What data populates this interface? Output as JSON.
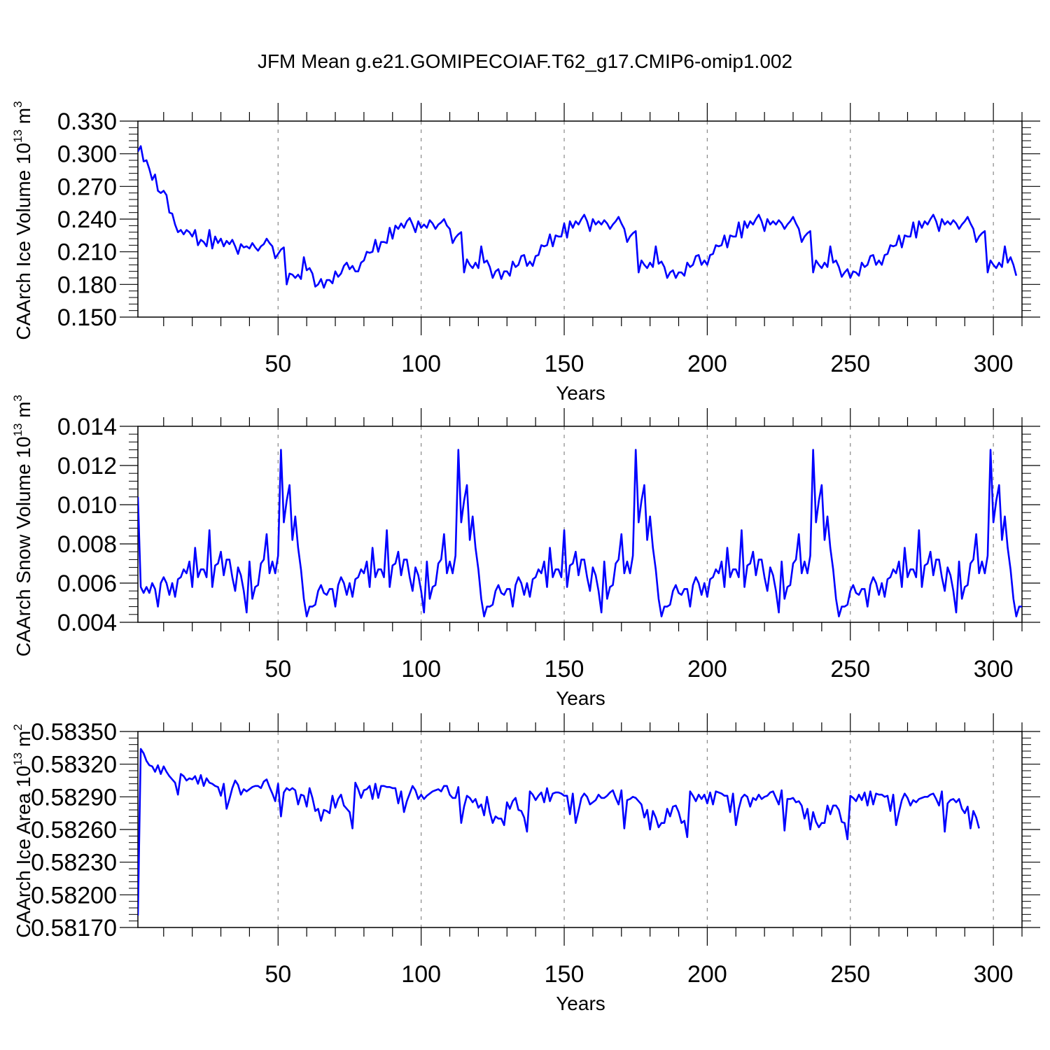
{
  "title": "JFM Mean g.e21.GOMIPECOIAF.T62_g17.CMIP6-omip1.002",
  "chart_data": [
    {
      "type": "line",
      "name": "ice-volume",
      "ylabel_main": "CAArch Ice Volume 10",
      "ylabel_exp": "13",
      "ylabel_unit": " m",
      "ylabel_unit_exp": "3",
      "xlabel": "Years",
      "xlim": [
        1,
        310
      ],
      "ylim": [
        0.15,
        0.33
      ],
      "yticks": [
        0.15,
        0.18,
        0.21,
        0.24,
        0.27,
        0.3,
        0.33
      ],
      "ytick_labels": [
        "0.150",
        "0.180",
        "0.210",
        "0.240",
        "0.270",
        "0.300",
        "0.330"
      ],
      "xticks": [
        50,
        100,
        150,
        200,
        250,
        300
      ],
      "xtick_labels": [
        "50",
        "100",
        "150",
        "200",
        "250",
        "300"
      ],
      "color": "#0000ff",
      "x_start": 1,
      "values": [
        0.302,
        0.307,
        0.293,
        0.294,
        0.286,
        0.276,
        0.281,
        0.266,
        0.264,
        0.266,
        0.262,
        0.246,
        0.245,
        0.235,
        0.228,
        0.23,
        0.226,
        0.23,
        0.228,
        0.224,
        0.23,
        0.216,
        0.221,
        0.219,
        0.215,
        0.23,
        0.213,
        0.224,
        0.218,
        0.222,
        0.215,
        0.22,
        0.217,
        0.221,
        0.215,
        0.208,
        0.217,
        0.214,
        0.215,
        0.213,
        0.218,
        0.214,
        0.211,
        0.215,
        0.217,
        0.222,
        0.218,
        0.215,
        0.204,
        0.208,
        0.212,
        0.214,
        0.18,
        0.19,
        0.189,
        0.186,
        0.189,
        0.185,
        0.205,
        0.193,
        0.195,
        0.19,
        0.178,
        0.18,
        0.185,
        0.177,
        0.184,
        0.184,
        0.181,
        0.192,
        0.187,
        0.19,
        0.197,
        0.2,
        0.194,
        0.197,
        0.192,
        0.192,
        0.2,
        0.202,
        0.21,
        0.209,
        0.21,
        0.221,
        0.21,
        0.219,
        0.219,
        0.218,
        0.232,
        0.222,
        0.234,
        0.231,
        0.236,
        0.232,
        0.238,
        0.241,
        0.235,
        0.228,
        0.238,
        0.232,
        0.235,
        0.232,
        0.239,
        0.236,
        0.231,
        0.235,
        0.237,
        0.24,
        0.234,
        0.231,
        0.218,
        0.223,
        0.226,
        0.228,
        0.191,
        0.203,
        0.198,
        0.195,
        0.2,
        0.195,
        0.215,
        0.2,
        0.202,
        0.196,
        0.186,
        0.192,
        0.194,
        0.185,
        0.192,
        0.192,
        0.188,
        0.201,
        0.196,
        0.198,
        0.206,
        0.207,
        0.197,
        0.201,
        0.197,
        0.206,
        0.207,
        0.216,
        0.215,
        0.216,
        0.226,
        0.215,
        0.225,
        0.224,
        0.224,
        0.236,
        0.223,
        0.238,
        0.232,
        0.238,
        0.235,
        0.24,
        0.244,
        0.238,
        0.229,
        0.24,
        0.235,
        0.238,
        0.235,
        0.239,
        0.236,
        0.231,
        0.235,
        0.238,
        0.242,
        0.236,
        0.231,
        0.219,
        0.224,
        0.227,
        0.229,
        0.191,
        0.202,
        0.198,
        0.195,
        0.2,
        0.196,
        0.215,
        0.199,
        0.201,
        0.196,
        0.186,
        0.191,
        0.193,
        0.186,
        0.191,
        0.191,
        0.188,
        0.2,
        0.196,
        0.198,
        0.206,
        0.207,
        0.198,
        0.202,
        0.198,
        0.207,
        0.208,
        0.216,
        0.215,
        0.216,
        0.225,
        0.214,
        0.225,
        0.224,
        0.224,
        0.237,
        0.223,
        0.238,
        0.232,
        0.238,
        0.235,
        0.24,
        0.244,
        0.238,
        0.229,
        0.24,
        0.235,
        0.238,
        0.235,
        0.239,
        0.236,
        0.231,
        0.235,
        0.238,
        0.242,
        0.236,
        0.231,
        0.219,
        0.224,
        0.227,
        0.229,
        0.191,
        0.202,
        0.198,
        0.195,
        0.2,
        0.196,
        0.215,
        0.2,
        0.202,
        0.196,
        0.187,
        0.191,
        0.194,
        0.186,
        0.192,
        0.191,
        0.188,
        0.2,
        0.196,
        0.198,
        0.206,
        0.207,
        0.198,
        0.202,
        0.198,
        0.207,
        0.208,
        0.216,
        0.215,
        0.216,
        0.225,
        0.214,
        0.225,
        0.224,
        0.224,
        0.237,
        0.223,
        0.238,
        0.232,
        0.238,
        0.235,
        0.24,
        0.244,
        0.238,
        0.229,
        0.24,
        0.235,
        0.238,
        0.235,
        0.239,
        0.236,
        0.231,
        0.235,
        0.238,
        0.242,
        0.236,
        0.231,
        0.219,
        0.224,
        0.227,
        0.229,
        0.191,
        0.202,
        0.198,
        0.195,
        0.2,
        0.196,
        0.215,
        0.2,
        0.205,
        0.198,
        0.188
      ]
    },
    {
      "type": "line",
      "name": "snow-volume",
      "ylabel_main": "CAArch Snow Volume 10",
      "ylabel_exp": "13",
      "ylabel_unit": " m",
      "ylabel_unit_exp": "3",
      "xlabel": "Years",
      "xlim": [
        1,
        310
      ],
      "ylim": [
        0.004,
        0.014
      ],
      "yticks": [
        0.004,
        0.006,
        0.008,
        0.01,
        0.012,
        0.014
      ],
      "ytick_labels": [
        "0.004",
        "0.006",
        "0.008",
        "0.010",
        "0.012",
        "0.014"
      ],
      "xticks": [
        50,
        100,
        150,
        200,
        250,
        300
      ],
      "xtick_labels": [
        "50",
        "100",
        "150",
        "200",
        "250",
        "300"
      ],
      "color": "#0000ff",
      "x_start": 1,
      "values": [
        0.0104,
        0.0058,
        0.0055,
        0.0058,
        0.0055,
        0.006,
        0.0057,
        0.0048,
        0.006,
        0.0063,
        0.006,
        0.0054,
        0.006,
        0.0053,
        0.0062,
        0.0063,
        0.0067,
        0.0065,
        0.0071,
        0.0058,
        0.0078,
        0.0063,
        0.0067,
        0.0067,
        0.0063,
        0.0087,
        0.0058,
        0.0069,
        0.007,
        0.0076,
        0.0064,
        0.0072,
        0.0072,
        0.0063,
        0.0056,
        0.0068,
        0.0064,
        0.0056,
        0.0045,
        0.0071,
        0.0052,
        0.0058,
        0.0059,
        0.007,
        0.0072,
        0.0085,
        0.0065,
        0.0071,
        0.0065,
        0.0074,
        0.0128,
        0.0091,
        0.0102,
        0.011,
        0.0082,
        0.0094,
        0.0078,
        0.0067,
        0.0052,
        0.0043,
        0.0048,
        0.0048,
        0.0049,
        0.0056,
        0.0059,
        0.0055,
        0.0054,
        0.0057,
        0.0057,
        0.0048,
        0.0059,
        0.0063,
        0.006,
        0.0054,
        0.006,
        0.0053,
        0.0062,
        0.0063,
        0.0067,
        0.0065,
        0.0071,
        0.0058,
        0.0078,
        0.0063,
        0.0067,
        0.0067,
        0.0063,
        0.0087,
        0.0058,
        0.0069,
        0.007,
        0.0076,
        0.0064,
        0.0072,
        0.0072,
        0.0063,
        0.0056,
        0.0068,
        0.0064,
        0.0056,
        0.0045,
        0.0071,
        0.0052,
        0.0058,
        0.0059,
        0.007,
        0.0072,
        0.0085,
        0.0065,
        0.0071,
        0.0065,
        0.0074,
        0.0128,
        0.0091,
        0.0102,
        0.011,
        0.0082,
        0.0094,
        0.0078,
        0.0067,
        0.0052,
        0.0043,
        0.0048,
        0.0048,
        0.0049,
        0.0056,
        0.0059,
        0.0055,
        0.0054,
        0.0057,
        0.0057,
        0.0048,
        0.0059,
        0.0063,
        0.006,
        0.0054,
        0.006,
        0.0053,
        0.0062,
        0.0063,
        0.0067,
        0.0065,
        0.0071,
        0.0058,
        0.0078,
        0.0063,
        0.0067,
        0.0067,
        0.0063,
        0.0087,
        0.0058,
        0.0069,
        0.007,
        0.0076,
        0.0064,
        0.0072,
        0.0072,
        0.0063,
        0.0056,
        0.0068,
        0.0064,
        0.0056,
        0.0045,
        0.0071,
        0.0052,
        0.0058,
        0.0059,
        0.007,
        0.0072,
        0.0085,
        0.0065,
        0.0071,
        0.0065,
        0.0074,
        0.0128,
        0.0091,
        0.0102,
        0.011,
        0.0082,
        0.0094,
        0.0078,
        0.0067,
        0.0052,
        0.0043,
        0.0048,
        0.0048,
        0.0049,
        0.0056,
        0.0059,
        0.0055,
        0.0054,
        0.0057,
        0.0057,
        0.0048,
        0.0059,
        0.0063,
        0.006,
        0.0054,
        0.006,
        0.0053,
        0.0062,
        0.0063,
        0.0067,
        0.0065,
        0.0071,
        0.0058,
        0.0078,
        0.0063,
        0.0067,
        0.0067,
        0.0063,
        0.0087,
        0.0058,
        0.0069,
        0.007,
        0.0076,
        0.0064,
        0.0072,
        0.0072,
        0.0063,
        0.0056,
        0.0068,
        0.0064,
        0.0056,
        0.0045,
        0.0071,
        0.0052,
        0.0058,
        0.0059,
        0.007,
        0.0072,
        0.0085,
        0.0065,
        0.0071,
        0.0065,
        0.0074,
        0.0128,
        0.0091,
        0.0102,
        0.011,
        0.0082,
        0.0094,
        0.0078,
        0.0067,
        0.0052,
        0.0043,
        0.0048,
        0.0048,
        0.0049,
        0.0056,
        0.0059,
        0.0055,
        0.0054,
        0.0057,
        0.0057,
        0.0048,
        0.0059,
        0.0063,
        0.006,
        0.0054,
        0.006,
        0.0053,
        0.0062,
        0.0063,
        0.0067,
        0.0065,
        0.0071,
        0.0058,
        0.0078,
        0.0063,
        0.0067,
        0.0067,
        0.0063,
        0.0087,
        0.0058,
        0.0069,
        0.007,
        0.0076,
        0.0064,
        0.0072,
        0.0072,
        0.0063,
        0.0056,
        0.0068,
        0.0064,
        0.0056,
        0.0045,
        0.0071,
        0.0052,
        0.0058,
        0.0059,
        0.007,
        0.0072,
        0.0085,
        0.0065,
        0.0071,
        0.0065,
        0.0074,
        0.0128,
        0.0091,
        0.0102,
        0.011,
        0.0082,
        0.0094,
        0.0078,
        0.0067,
        0.0052,
        0.0043,
        0.0048,
        0.0048
      ]
    },
    {
      "type": "line",
      "name": "ice-area",
      "ylabel_main": "CAArch Ice Area 10",
      "ylabel_exp": "13",
      "ylabel_unit": " m",
      "ylabel_unit_exp": "2",
      "xlabel": "Years",
      "xlim": [
        1,
        310
      ],
      "ylim": [
        0.5817,
        0.5835
      ],
      "yticks": [
        0.5817,
        0.582,
        0.5823,
        0.5826,
        0.5829,
        0.5832,
        0.5835
      ],
      "ytick_labels": [
        "0.58170",
        "0.58200",
        "0.58230",
        "0.58260",
        "0.58290",
        "0.58320",
        "0.58350"
      ],
      "xticks": [
        50,
        100,
        150,
        200,
        250,
        300
      ],
      "xtick_labels": [
        "50",
        "100",
        "150",
        "200",
        "250",
        "300"
      ],
      "color": "#0000ff",
      "x_start": 1,
      "values": [
        0.58181,
        0.58334,
        0.5833,
        0.58323,
        0.58319,
        0.58318,
        0.58313,
        0.58319,
        0.58311,
        0.58318,
        0.58313,
        0.58309,
        0.58306,
        0.58303,
        0.58292,
        0.58311,
        0.58309,
        0.58305,
        0.58307,
        0.58306,
        0.58309,
        0.58302,
        0.5831,
        0.583,
        0.58307,
        0.58303,
        0.58302,
        0.583,
        0.58299,
        0.58291,
        0.58302,
        0.58279,
        0.58288,
        0.58298,
        0.58305,
        0.58301,
        0.58292,
        0.58297,
        0.58295,
        0.58297,
        0.58299,
        0.583,
        0.583,
        0.58298,
        0.58304,
        0.58306,
        0.58299,
        0.58293,
        0.58286,
        0.58302,
        0.58272,
        0.58294,
        0.58298,
        0.58296,
        0.58298,
        0.58296,
        0.58283,
        0.58292,
        0.58291,
        0.58281,
        0.58298,
        0.58289,
        0.58277,
        0.58279,
        0.58268,
        0.58278,
        0.58277,
        0.58275,
        0.58291,
        0.5828,
        0.58288,
        0.58292,
        0.58282,
        0.58279,
        0.58276,
        0.58261,
        0.58303,
        0.58297,
        0.58289,
        0.58296,
        0.58297,
        0.583,
        0.58288,
        0.58302,
        0.58289,
        0.583,
        0.583,
        0.58299,
        0.58299,
        0.58298,
        0.58298,
        0.58284,
        0.58295,
        0.58276,
        0.58286,
        0.58293,
        0.583,
        0.58296,
        0.58288,
        0.58292,
        0.58288,
        0.58291,
        0.58293,
        0.58295,
        0.58296,
        0.58297,
        0.58295,
        0.583,
        0.583,
        0.58292,
        0.58289,
        0.58289,
        0.58299,
        0.58266,
        0.58281,
        0.58291,
        0.58289,
        0.58285,
        0.58288,
        0.5828,
        0.58283,
        0.58273,
        0.5829,
        0.58276,
        0.58266,
        0.58272,
        0.5827,
        0.5827,
        0.58264,
        0.58285,
        0.58279,
        0.58286,
        0.58289,
        0.58278,
        0.58277,
        0.58271,
        0.58258,
        0.58295,
        0.58292,
        0.58287,
        0.58291,
        0.58294,
        0.58285,
        0.58298,
        0.58286,
        0.58293,
        0.58294,
        0.58294,
        0.58293,
        0.58291,
        0.58291,
        0.58274,
        0.58293,
        0.58266,
        0.58277,
        0.58289,
        0.58293,
        0.5829,
        0.58283,
        0.58285,
        0.58287,
        0.58292,
        0.58289,
        0.58289,
        0.58291,
        0.58294,
        0.58296,
        0.58289,
        0.58283,
        0.58296,
        0.58261,
        0.58287,
        0.58288,
        0.5829,
        0.58289,
        0.58286,
        0.58283,
        0.58271,
        0.58278,
        0.5826,
        0.58277,
        0.58271,
        0.58262,
        0.58266,
        0.58266,
        0.58279,
        0.58272,
        0.58281,
        0.58282,
        0.58276,
        0.58266,
        0.58268,
        0.58253,
        0.58295,
        0.58291,
        0.58286,
        0.58292,
        0.58288,
        0.58292,
        0.58284,
        0.58294,
        0.58283,
        0.58295,
        0.58294,
        0.58293,
        0.58291,
        0.58291,
        0.58276,
        0.58293,
        0.58264,
        0.58279,
        0.58289,
        0.58292,
        0.5829,
        0.58281,
        0.58289,
        0.58287,
        0.58292,
        0.58288,
        0.5829,
        0.58291,
        0.58294,
        0.58295,
        0.58289,
        0.58283,
        0.58296,
        0.58259,
        0.58288,
        0.58288,
        0.58289,
        0.58285,
        0.58286,
        0.58282,
        0.5827,
        0.58279,
        0.5826,
        0.58276,
        0.58267,
        0.58262,
        0.58266,
        0.58266,
        0.58282,
        0.58274,
        0.58282,
        0.58282,
        0.58278,
        0.58267,
        0.58266,
        0.58251,
        0.58291,
        0.58289,
        0.58286,
        0.58292,
        0.58287,
        0.58294,
        0.58282,
        0.58295,
        0.58283,
        0.58293,
        0.58292,
        0.58292,
        0.5829,
        0.58291,
        0.58277,
        0.58292,
        0.58264,
        0.58276,
        0.58287,
        0.58293,
        0.58289,
        0.58282,
        0.58287,
        0.58285,
        0.58288,
        0.58289,
        0.5829,
        0.5829,
        0.58292,
        0.58293,
        0.58288,
        0.58282,
        0.58295,
        0.58258,
        0.58284,
        0.58287,
        0.58288,
        0.58285,
        0.58288,
        0.58279,
        0.58275,
        0.58281,
        0.58261,
        0.58277,
        0.58271,
        0.58261
      ]
    }
  ]
}
